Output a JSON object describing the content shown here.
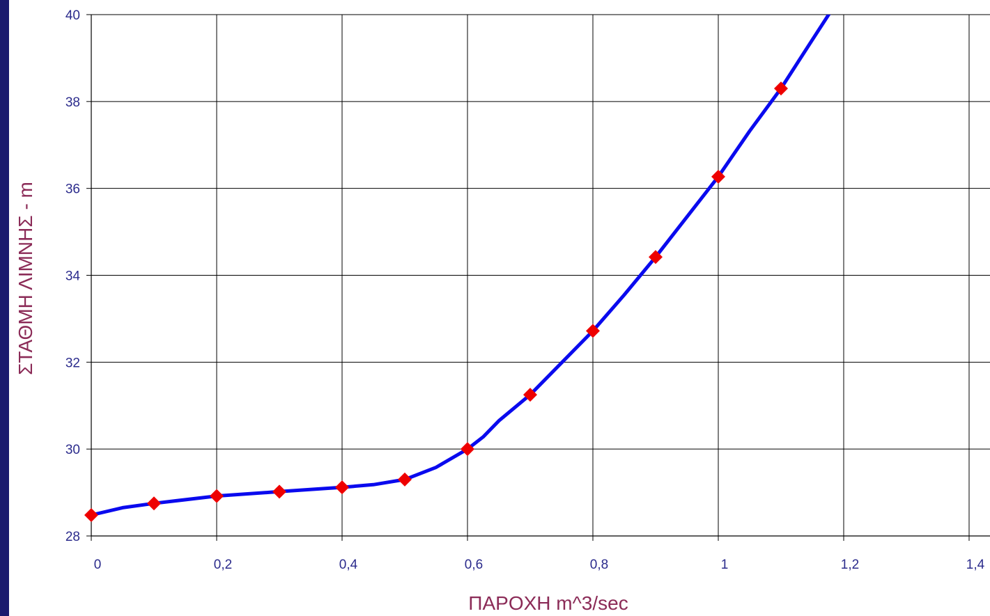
{
  "chart_data": {
    "type": "line",
    "title": "",
    "xlabel": "ΠΑΡΟΧΗ m^3/sec",
    "ylabel": "ΣΤΑΘΜΗ ΛΙΜΝΗΣ  - m",
    "xlim": [
      0,
      1.5
    ],
    "ylim": [
      28,
      40
    ],
    "x_ticks": [
      0,
      0.2,
      0.4,
      0.6,
      0.8,
      1,
      1.2,
      1.4
    ],
    "x_tick_labels": [
      "0",
      "0,2",
      "0,4",
      "0,6",
      "0,8",
      "1",
      "1,2",
      "1,4"
    ],
    "y_ticks": [
      28,
      30,
      32,
      34,
      36,
      38,
      40
    ],
    "y_tick_labels": [
      "28",
      "30",
      "32",
      "34",
      "36",
      "38",
      "40"
    ],
    "grid": true,
    "legend": "none",
    "series": [
      {
        "line_color": "#0a0aee",
        "marker_color": "#ee0000",
        "marker": "diamond",
        "curve_x": [
          0,
          0.05,
          0.1,
          0.2,
          0.3,
          0.4,
          0.45,
          0.5,
          0.55,
          0.6,
          0.625,
          0.65,
          0.7,
          0.8,
          0.85,
          0.9,
          1.0,
          1.05,
          1.1,
          1.15,
          1.185
        ],
        "curve_y": [
          28.48,
          28.65,
          28.75,
          28.92,
          29.02,
          29.12,
          29.18,
          29.3,
          29.58,
          30.0,
          30.28,
          30.65,
          31.25,
          32.72,
          33.55,
          34.42,
          36.27,
          37.32,
          38.3,
          39.42,
          40.2
        ],
        "markers_x": [
          0,
          0.1,
          0.2,
          0.3,
          0.4,
          0.5,
          0.6,
          0.7,
          0.8,
          0.9,
          1.0,
          1.1
        ],
        "markers_y": [
          28.48,
          28.75,
          28.92,
          29.02,
          29.12,
          29.3,
          30.0,
          31.25,
          32.72,
          34.42,
          36.27,
          38.3
        ]
      }
    ]
  }
}
